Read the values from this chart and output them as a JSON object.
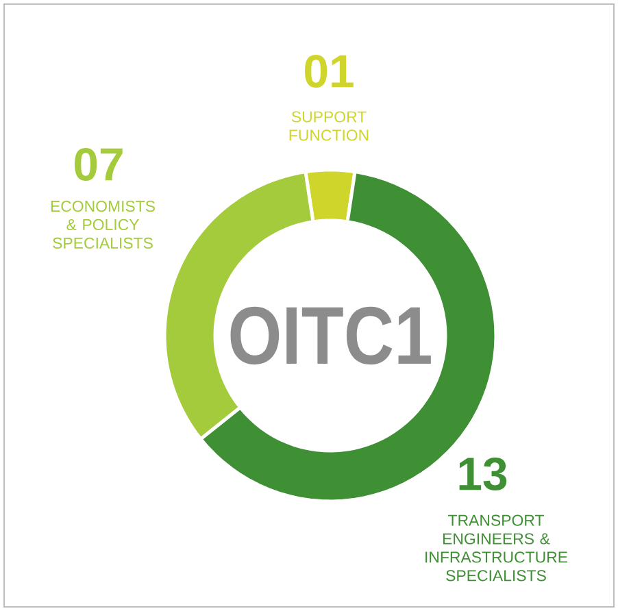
{
  "chart_data": {
    "type": "donut",
    "title": "OITC1",
    "categories": [
      "SUPPORT FUNCTION",
      "TRANSPORT ENGINEERS & INFRASTRUCTURE SPECIALISTS",
      "ECONOMISTS & POLICY SPECIALISTS"
    ],
    "values": [
      1,
      13,
      7
    ],
    "value_labels": [
      "01",
      "13",
      "07"
    ],
    "colors": [
      "#cfd52a",
      "#3f8f35",
      "#a3cb3b"
    ]
  }
}
